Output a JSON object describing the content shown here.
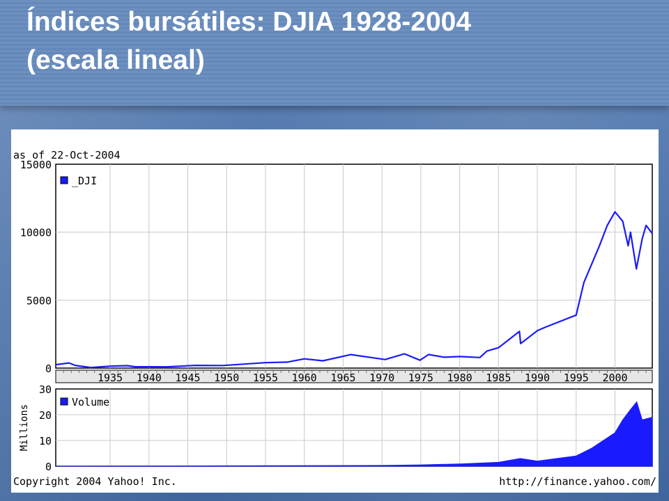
{
  "slide": {
    "title_line1": "Índices bursátiles: DJIA 1928-2004",
    "title_line2": "(escala lineal)"
  },
  "chart_data": {
    "type": "line",
    "as_of_label": "as of 22-Oct-2004",
    "xlim": [
      1928,
      2004.8
    ],
    "x_ticks": [
      1935,
      1940,
      1945,
      1950,
      1955,
      1960,
      1965,
      1970,
      1975,
      1980,
      1985,
      1990,
      1995,
      2000
    ],
    "price": {
      "legend": "_DJI",
      "color": "#1a1aff",
      "ylim": [
        0,
        15000
      ],
      "y_ticks": [
        0,
        5000,
        10000,
        15000
      ],
      "y_tick_labels": [
        "0",
        "5000",
        "10000",
        "15000"
      ],
      "x": [
        1928,
        1929.7,
        1930.5,
        1932.5,
        1935,
        1937.2,
        1938.2,
        1942.3,
        1946,
        1949.5,
        1955,
        1957.8,
        1960,
        1962.4,
        1966,
        1970.4,
        1972.9,
        1974.9,
        1976,
        1978,
        1980,
        1982.6,
        1983.5,
        1985,
        1987.7,
        1987.85,
        1990,
        1991,
        1995,
        1996,
        1998,
        1999,
        2000,
        2001,
        2001.7,
        2002,
        2002.75,
        2003.5,
        2004,
        2004.8
      ],
      "y": [
        250,
        380,
        200,
        41,
        144,
        180,
        100,
        93,
        200,
        190,
        400,
        440,
        680,
        540,
        995,
        630,
        1050,
        580,
        1000,
        800,
        850,
        780,
        1250,
        1500,
        2700,
        1800,
        2750,
        3000,
        3900,
        6300,
        9000,
        10500,
        11500,
        10800,
        9000,
        10000,
        7300,
        9500,
        10500,
        9900
      ]
    },
    "volume": {
      "legend": "Volume",
      "ylabel": "Millions",
      "color": "#1a1aff",
      "ylim": [
        0,
        30
      ],
      "y_ticks": [
        0,
        10,
        20,
        30
      ],
      "y_tick_labels": [
        "0",
        "10",
        "20",
        "30"
      ],
      "x": [
        1928,
        1970,
        1975,
        1980,
        1985,
        1987.8,
        1990,
        1995,
        1997,
        1998,
        1999,
        2000,
        2001,
        2002,
        2002.8,
        2003.5,
        2004.8
      ],
      "y": [
        0,
        0.3,
        0.5,
        0.9,
        1.5,
        3,
        2,
        4,
        7,
        9,
        11,
        13,
        18,
        22,
        25,
        18,
        19
      ]
    },
    "footer_left": "Copyright 2004 Yahoo! Inc.",
    "footer_right": "http://finance.yahoo.com/"
  }
}
